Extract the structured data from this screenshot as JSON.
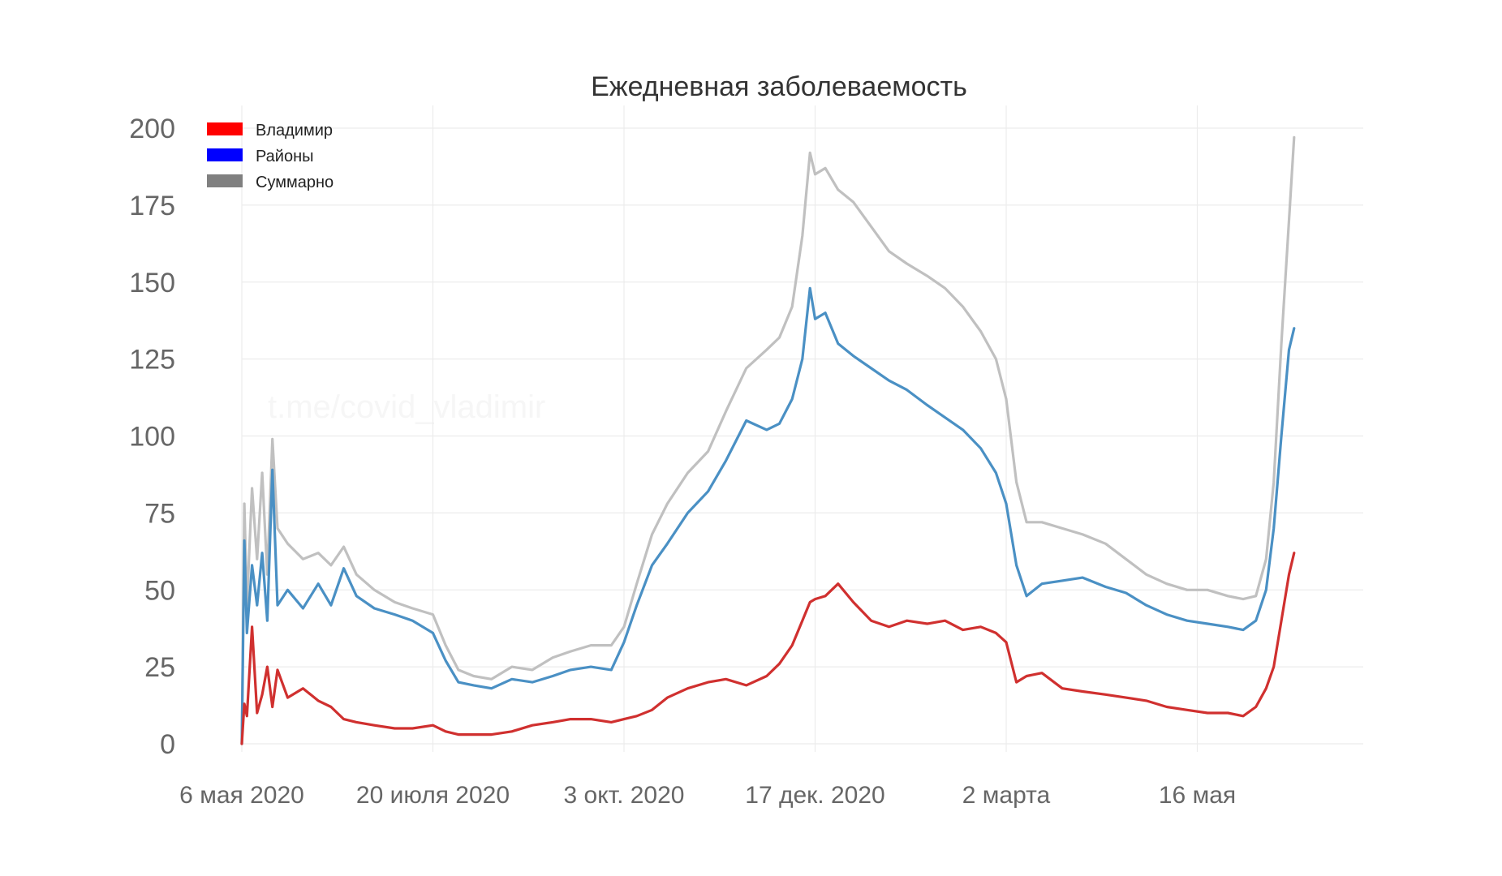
{
  "chart_data": {
    "type": "line",
    "title": "Ежедневная заболеваемость",
    "watermark": "t.me/covid_vladimir",
    "xlabel": "",
    "ylabel": "",
    "ylim": [
      0,
      200
    ],
    "yticks": [
      0,
      25,
      50,
      75,
      100,
      125,
      150,
      175,
      200
    ],
    "xlim": [
      "2020-05-06",
      "2021-06-30"
    ],
    "xticks": [
      {
        "date": "2020-05-06",
        "label": "6 мая 2020"
      },
      {
        "date": "2020-07-20",
        "label": "20 июля 2020"
      },
      {
        "date": "2020-10-03",
        "label": "3 окт. 2020"
      },
      {
        "date": "2020-12-17",
        "label": "17 дек. 2020"
      },
      {
        "date": "2021-03-02",
        "label": "2 марта"
      },
      {
        "date": "2021-05-16",
        "label": "16 мая"
      }
    ],
    "grid": true,
    "legend_position": "top-left",
    "legend": [
      {
        "label": "Владимир",
        "color": "#ff0000"
      },
      {
        "label": "Районы",
        "color": "#0000ff"
      },
      {
        "label": "Суммарно",
        "color": "#808080"
      }
    ],
    "series": [
      {
        "name": "Суммарно",
        "color": "#c0c0c0",
        "points": [
          [
            "2020-05-06",
            0
          ],
          [
            "2020-05-07",
            78
          ],
          [
            "2020-05-08",
            45
          ],
          [
            "2020-05-10",
            83
          ],
          [
            "2020-05-12",
            60
          ],
          [
            "2020-05-14",
            88
          ],
          [
            "2020-05-16",
            55
          ],
          [
            "2020-05-18",
            99
          ],
          [
            "2020-05-20",
            70
          ],
          [
            "2020-05-24",
            65
          ],
          [
            "2020-05-30",
            60
          ],
          [
            "2020-06-05",
            62
          ],
          [
            "2020-06-10",
            58
          ],
          [
            "2020-06-15",
            64
          ],
          [
            "2020-06-20",
            55
          ],
          [
            "2020-06-27",
            50
          ],
          [
            "2020-07-05",
            46
          ],
          [
            "2020-07-12",
            44
          ],
          [
            "2020-07-20",
            42
          ],
          [
            "2020-07-25",
            32
          ],
          [
            "2020-07-30",
            24
          ],
          [
            "2020-08-05",
            22
          ],
          [
            "2020-08-12",
            21
          ],
          [
            "2020-08-20",
            25
          ],
          [
            "2020-08-28",
            24
          ],
          [
            "2020-09-05",
            28
          ],
          [
            "2020-09-12",
            30
          ],
          [
            "2020-09-20",
            32
          ],
          [
            "2020-09-28",
            32
          ],
          [
            "2020-10-03",
            38
          ],
          [
            "2020-10-08",
            52
          ],
          [
            "2020-10-14",
            68
          ],
          [
            "2020-10-20",
            78
          ],
          [
            "2020-10-28",
            88
          ],
          [
            "2020-11-05",
            95
          ],
          [
            "2020-11-12",
            108
          ],
          [
            "2020-11-20",
            122
          ],
          [
            "2020-11-28",
            128
          ],
          [
            "2020-12-03",
            132
          ],
          [
            "2020-12-08",
            142
          ],
          [
            "2020-12-12",
            165
          ],
          [
            "2020-12-15",
            192
          ],
          [
            "2020-12-17",
            185
          ],
          [
            "2020-12-21",
            187
          ],
          [
            "2020-12-26",
            180
          ],
          [
            "2021-01-01",
            176
          ],
          [
            "2021-01-08",
            168
          ],
          [
            "2021-01-15",
            160
          ],
          [
            "2021-01-22",
            156
          ],
          [
            "2021-01-30",
            152
          ],
          [
            "2021-02-06",
            148
          ],
          [
            "2021-02-13",
            142
          ],
          [
            "2021-02-20",
            134
          ],
          [
            "2021-02-26",
            125
          ],
          [
            "2021-03-02",
            112
          ],
          [
            "2021-03-06",
            85
          ],
          [
            "2021-03-10",
            72
          ],
          [
            "2021-03-16",
            72
          ],
          [
            "2021-03-24",
            70
          ],
          [
            "2021-04-01",
            68
          ],
          [
            "2021-04-10",
            65
          ],
          [
            "2021-04-18",
            60
          ],
          [
            "2021-04-26",
            55
          ],
          [
            "2021-05-04",
            52
          ],
          [
            "2021-05-12",
            50
          ],
          [
            "2021-05-20",
            50
          ],
          [
            "2021-05-28",
            48
          ],
          [
            "2021-06-03",
            47
          ],
          [
            "2021-06-08",
            48
          ],
          [
            "2021-06-12",
            60
          ],
          [
            "2021-06-15",
            85
          ],
          [
            "2021-06-18",
            130
          ],
          [
            "2021-06-21",
            170
          ],
          [
            "2021-06-23",
            197
          ]
        ]
      },
      {
        "name": "Районы",
        "color": "#4a90c4",
        "points": [
          [
            "2020-05-06",
            0
          ],
          [
            "2020-05-07",
            66
          ],
          [
            "2020-05-08",
            36
          ],
          [
            "2020-05-10",
            58
          ],
          [
            "2020-05-12",
            45
          ],
          [
            "2020-05-14",
            62
          ],
          [
            "2020-05-16",
            40
          ],
          [
            "2020-05-18",
            89
          ],
          [
            "2020-05-20",
            45
          ],
          [
            "2020-05-24",
            50
          ],
          [
            "2020-05-30",
            44
          ],
          [
            "2020-06-05",
            52
          ],
          [
            "2020-06-10",
            45
          ],
          [
            "2020-06-15",
            57
          ],
          [
            "2020-06-20",
            48
          ],
          [
            "2020-06-27",
            44
          ],
          [
            "2020-07-05",
            42
          ],
          [
            "2020-07-12",
            40
          ],
          [
            "2020-07-20",
            36
          ],
          [
            "2020-07-25",
            27
          ],
          [
            "2020-07-30",
            20
          ],
          [
            "2020-08-05",
            19
          ],
          [
            "2020-08-12",
            18
          ],
          [
            "2020-08-20",
            21
          ],
          [
            "2020-08-28",
            20
          ],
          [
            "2020-09-05",
            22
          ],
          [
            "2020-09-12",
            24
          ],
          [
            "2020-09-20",
            25
          ],
          [
            "2020-09-28",
            24
          ],
          [
            "2020-10-03",
            33
          ],
          [
            "2020-10-08",
            45
          ],
          [
            "2020-10-14",
            58
          ],
          [
            "2020-10-20",
            65
          ],
          [
            "2020-10-28",
            75
          ],
          [
            "2020-11-05",
            82
          ],
          [
            "2020-11-12",
            92
          ],
          [
            "2020-11-20",
            105
          ],
          [
            "2020-11-28",
            102
          ],
          [
            "2020-12-03",
            104
          ],
          [
            "2020-12-08",
            112
          ],
          [
            "2020-12-12",
            125
          ],
          [
            "2020-12-15",
            148
          ],
          [
            "2020-12-17",
            138
          ],
          [
            "2020-12-21",
            140
          ],
          [
            "2020-12-26",
            130
          ],
          [
            "2021-01-01",
            126
          ],
          [
            "2021-01-08",
            122
          ],
          [
            "2021-01-15",
            118
          ],
          [
            "2021-01-22",
            115
          ],
          [
            "2021-01-30",
            110
          ],
          [
            "2021-02-06",
            106
          ],
          [
            "2021-02-13",
            102
          ],
          [
            "2021-02-20",
            96
          ],
          [
            "2021-02-26",
            88
          ],
          [
            "2021-03-02",
            78
          ],
          [
            "2021-03-06",
            58
          ],
          [
            "2021-03-10",
            48
          ],
          [
            "2021-03-16",
            52
          ],
          [
            "2021-03-24",
            53
          ],
          [
            "2021-04-01",
            54
          ],
          [
            "2021-04-10",
            51
          ],
          [
            "2021-04-18",
            49
          ],
          [
            "2021-04-26",
            45
          ],
          [
            "2021-05-04",
            42
          ],
          [
            "2021-05-12",
            40
          ],
          [
            "2021-05-20",
            39
          ],
          [
            "2021-05-28",
            38
          ],
          [
            "2021-06-03",
            37
          ],
          [
            "2021-06-08",
            40
          ],
          [
            "2021-06-12",
            50
          ],
          [
            "2021-06-15",
            70
          ],
          [
            "2021-06-18",
            100
          ],
          [
            "2021-06-21",
            128
          ],
          [
            "2021-06-23",
            135
          ]
        ]
      },
      {
        "name": "Владимир",
        "color": "#d0302f",
        "points": [
          [
            "2020-05-06",
            0
          ],
          [
            "2020-05-07",
            13
          ],
          [
            "2020-05-08",
            9
          ],
          [
            "2020-05-10",
            38
          ],
          [
            "2020-05-12",
            10
          ],
          [
            "2020-05-14",
            16
          ],
          [
            "2020-05-16",
            25
          ],
          [
            "2020-05-18",
            12
          ],
          [
            "2020-05-20",
            24
          ],
          [
            "2020-05-24",
            15
          ],
          [
            "2020-05-30",
            18
          ],
          [
            "2020-06-05",
            14
          ],
          [
            "2020-06-10",
            12
          ],
          [
            "2020-06-15",
            8
          ],
          [
            "2020-06-20",
            7
          ],
          [
            "2020-06-27",
            6
          ],
          [
            "2020-07-05",
            5
          ],
          [
            "2020-07-12",
            5
          ],
          [
            "2020-07-20",
            6
          ],
          [
            "2020-07-25",
            4
          ],
          [
            "2020-07-30",
            3
          ],
          [
            "2020-08-05",
            3
          ],
          [
            "2020-08-12",
            3
          ],
          [
            "2020-08-20",
            4
          ],
          [
            "2020-08-28",
            6
          ],
          [
            "2020-09-05",
            7
          ],
          [
            "2020-09-12",
            8
          ],
          [
            "2020-09-20",
            8
          ],
          [
            "2020-09-28",
            7
          ],
          [
            "2020-10-03",
            8
          ],
          [
            "2020-10-08",
            9
          ],
          [
            "2020-10-14",
            11
          ],
          [
            "2020-10-20",
            15
          ],
          [
            "2020-10-28",
            18
          ],
          [
            "2020-11-05",
            20
          ],
          [
            "2020-11-12",
            21
          ],
          [
            "2020-11-20",
            19
          ],
          [
            "2020-11-28",
            22
          ],
          [
            "2020-12-03",
            26
          ],
          [
            "2020-12-08",
            32
          ],
          [
            "2020-12-12",
            40
          ],
          [
            "2020-12-15",
            46
          ],
          [
            "2020-12-17",
            47
          ],
          [
            "2020-12-21",
            48
          ],
          [
            "2020-12-26",
            52
          ],
          [
            "2021-01-01",
            46
          ],
          [
            "2021-01-08",
            40
          ],
          [
            "2021-01-15",
            38
          ],
          [
            "2021-01-22",
            40
          ],
          [
            "2021-01-30",
            39
          ],
          [
            "2021-02-06",
            40
          ],
          [
            "2021-02-13",
            37
          ],
          [
            "2021-02-20",
            38
          ],
          [
            "2021-02-26",
            36
          ],
          [
            "2021-03-02",
            33
          ],
          [
            "2021-03-06",
            20
          ],
          [
            "2021-03-10",
            22
          ],
          [
            "2021-03-16",
            23
          ],
          [
            "2021-03-24",
            18
          ],
          [
            "2021-04-01",
            17
          ],
          [
            "2021-04-10",
            16
          ],
          [
            "2021-04-18",
            15
          ],
          [
            "2021-04-26",
            14
          ],
          [
            "2021-05-04",
            12
          ],
          [
            "2021-05-12",
            11
          ],
          [
            "2021-05-20",
            10
          ],
          [
            "2021-05-28",
            10
          ],
          [
            "2021-06-03",
            9
          ],
          [
            "2021-06-08",
            12
          ],
          [
            "2021-06-12",
            18
          ],
          [
            "2021-06-15",
            25
          ],
          [
            "2021-06-18",
            40
          ],
          [
            "2021-06-21",
            55
          ],
          [
            "2021-06-23",
            62
          ]
        ]
      }
    ]
  }
}
